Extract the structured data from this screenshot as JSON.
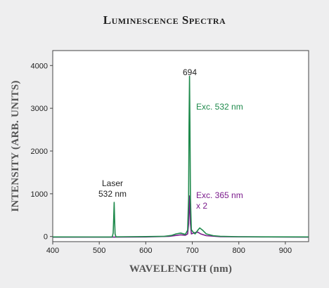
{
  "chart_data": {
    "type": "line",
    "title": "Luminescence Spectra",
    "xlabel": "WAVELENGTH (nm)",
    "ylabel": "INTENSITY (ARB. UNITS)",
    "xlim": [
      400,
      950
    ],
    "ylim": [
      -120,
      4350
    ],
    "x_ticks": [
      400,
      500,
      600,
      700,
      800,
      900
    ],
    "y_ticks": [
      0,
      1000,
      2000,
      3000,
      4000
    ],
    "grid": false,
    "legend": "none",
    "series": [
      {
        "name": "Exc. 532 nm",
        "color": "#1f8a4c",
        "points": [
          [
            400,
            -10
          ],
          [
            520,
            -12
          ],
          [
            528,
            -10
          ],
          [
            530,
            80
          ],
          [
            531,
            420
          ],
          [
            532,
            800
          ],
          [
            533,
            420
          ],
          [
            534,
            60
          ],
          [
            536,
            -8
          ],
          [
            560,
            -5
          ],
          [
            600,
            -2
          ],
          [
            640,
            5
          ],
          [
            655,
            25
          ],
          [
            665,
            60
          ],
          [
            675,
            80
          ],
          [
            685,
            50
          ],
          [
            690,
            150
          ],
          [
            692,
            900
          ],
          [
            693,
            2600
          ],
          [
            694,
            3750
          ],
          [
            695,
            2600
          ],
          [
            696,
            900
          ],
          [
            698,
            160
          ],
          [
            702,
            100
          ],
          [
            706,
            60
          ],
          [
            712,
            150
          ],
          [
            716,
            200
          ],
          [
            722,
            150
          ],
          [
            730,
            60
          ],
          [
            745,
            20
          ],
          [
            760,
            5
          ],
          [
            800,
            -5
          ],
          [
            860,
            -8
          ],
          [
            950,
            -10
          ]
        ]
      },
      {
        "name": "Exc. 365 nm x 2",
        "color": "#7b1b8c",
        "points": [
          [
            400,
            -15
          ],
          [
            520,
            -15
          ],
          [
            600,
            -10
          ],
          [
            650,
            5
          ],
          [
            665,
            25
          ],
          [
            675,
            40
          ],
          [
            685,
            30
          ],
          [
            690,
            60
          ],
          [
            692,
            300
          ],
          [
            694,
            950
          ],
          [
            696,
            300
          ],
          [
            698,
            60
          ],
          [
            705,
            90
          ],
          [
            712,
            100
          ],
          [
            718,
            60
          ],
          [
            730,
            20
          ],
          [
            760,
            -5
          ],
          [
            850,
            -10
          ],
          [
            950,
            -15
          ]
        ]
      }
    ],
    "annotations": {
      "peak_label": "694",
      "laser_line1": "Laser",
      "laser_line2": "532 nm",
      "exc532": "Exc. 532 nm",
      "exc365_line1": "Exc. 365 nm",
      "exc365_line2": "x 2"
    }
  }
}
